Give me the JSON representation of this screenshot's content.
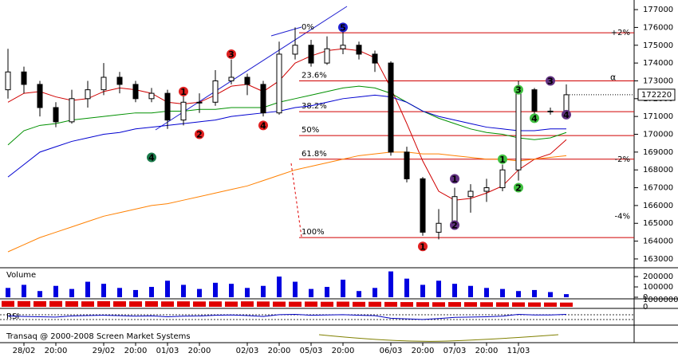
{
  "chart_data": {
    "type": "candlestick",
    "categories": [
      null,
      "28/02",
      null,
      "20:00",
      null,
      null,
      "29/02",
      null,
      "20:00",
      null,
      "01/03",
      null,
      "20:00",
      null,
      null,
      "02/03",
      null,
      "20:00",
      null,
      "05/03",
      null,
      "20:00",
      null,
      null,
      "06/03",
      null,
      "20:00",
      null,
      "07/03",
      null,
      "20:00",
      null,
      "11/03",
      null,
      null,
      null
    ],
    "open": [
      172500,
      173500,
      172800,
      171500,
      170700,
      172000,
      172500,
      173200,
      172800,
      172000,
      172300,
      170800,
      171800,
      171800,
      173000,
      173200,
      172800,
      171200,
      174500,
      175000,
      174000,
      174800,
      175000,
      174500,
      174000,
      169000,
      167500,
      164500,
      165000,
      166500,
      166800,
      167000,
      168000,
      172500,
      171300,
      171300
    ],
    "high": [
      174800,
      173800,
      173000,
      171800,
      172500,
      173000,
      174000,
      173500,
      173000,
      172600,
      172500,
      172200,
      172300,
      173600,
      174200,
      173400,
      173000,
      175200,
      176000,
      175300,
      175500,
      176000,
      175200,
      174700,
      174100,
      169300,
      167600,
      165800,
      167000,
      167200,
      167500,
      168300,
      173000,
      172600,
      171500,
      172800
    ],
    "low": [
      172000,
      172300,
      171000,
      170400,
      170600,
      171500,
      172200,
      172300,
      171800,
      171800,
      170300,
      170500,
      171200,
      171600,
      172800,
      172200,
      171000,
      171100,
      174200,
      173800,
      173900,
      174500,
      174200,
      173500,
      168800,
      167300,
      164300,
      164100,
      164800,
      165600,
      166200,
      166800,
      167400,
      171100,
      171100,
      171200
    ],
    "close": [
      173500,
      172800,
      171500,
      170700,
      172000,
      172500,
      173200,
      172800,
      172000,
      172300,
      170800,
      171800,
      171800,
      173000,
      173200,
      172800,
      171200,
      174500,
      175000,
      174000,
      174800,
      175000,
      174500,
      174000,
      169000,
      167500,
      164500,
      165000,
      166500,
      166800,
      167000,
      168000,
      172500,
      171300,
      171300,
      172220
    ],
    "series": [
      {
        "color": "#d00000",
        "values": [
          171800,
          172300,
          172400,
          172100,
          171900,
          172000,
          172400,
          172600,
          172500,
          172300,
          171800,
          171700,
          171800,
          172200,
          172700,
          172800,
          172400,
          173000,
          174000,
          174400,
          174700,
          174800,
          174700,
          174300,
          172600,
          170600,
          168500,
          166800,
          166300,
          166400,
          166700,
          167100,
          168000,
          168600,
          168900,
          169700
        ]
      },
      {
        "color": "#009000",
        "values": [
          169400,
          170200,
          170500,
          170600,
          170800,
          170900,
          171000,
          171100,
          171200,
          171200,
          171300,
          171300,
          171400,
          171400,
          171500,
          171500,
          171500,
          171800,
          172000,
          172200,
          172400,
          172600,
          172700,
          172600,
          172300,
          171800,
          171300,
          170900,
          170600,
          170300,
          170100,
          170000,
          169800,
          169700,
          169800,
          170100
        ]
      },
      {
        "color": "#0000d0",
        "values": [
          167600,
          168300,
          169000,
          169300,
          169600,
          169800,
          170000,
          170100,
          170300,
          170400,
          170500,
          170600,
          170700,
          170800,
          171000,
          171100,
          171200,
          171300,
          171500,
          171600,
          171800,
          172000,
          172100,
          172200,
          172100,
          171800,
          171300,
          171000,
          170800,
          170600,
          170400,
          170300,
          170200,
          170200,
          170300,
          170300
        ]
      },
      {
        "color": "#ff8000",
        "values": [
          163400,
          163800,
          164200,
          164500,
          164800,
          165100,
          165400,
          165600,
          165800,
          166000,
          166100,
          166300,
          166500,
          166700,
          166900,
          167100,
          167400,
          167700,
          168000,
          168200,
          168400,
          168600,
          168800,
          168900,
          169000,
          169000,
          168900,
          168900,
          168800,
          168700,
          168600,
          168600,
          168500,
          168600,
          168700,
          168800
        ]
      }
    ],
    "ylim": [
      162550,
      177540
    ],
    "yticks": [
      163000,
      164000,
      165000,
      166000,
      167000,
      168000,
      169000,
      170000,
      171000,
      172000,
      173000,
      174000,
      175000,
      176000,
      177000
    ],
    "last_price": 172220,
    "fib_levels": [
      {
        "label": "0%",
        "value": 175700
      },
      {
        "label": "23.6%",
        "value": 173000
      },
      {
        "label": "38.2%",
        "value": 171270
      },
      {
        "label": "50%",
        "value": 169930
      },
      {
        "label": "61.8%",
        "value": 168600
      },
      {
        "label": "100%",
        "value": 164200
      }
    ],
    "percent_labels": [
      {
        "label": "+2%",
        "value": 175700
      },
      {
        "label": "-2%",
        "value": 168600
      },
      {
        "label": "-4%",
        "value": 165400
      }
    ],
    "alpha": {
      "label": "α",
      "value": 173000
    },
    "markers": [
      {
        "label": "4",
        "color": "#1a7a4a",
        "candle": 9,
        "price": 168700
      },
      {
        "label": "1",
        "color": "#e02020",
        "candle": 11,
        "price": 172400
      },
      {
        "label": "2",
        "color": "#e02020",
        "candle": 12,
        "price": 170000
      },
      {
        "label": "3",
        "color": "#e02020",
        "candle": 14,
        "price": 174500
      },
      {
        "label": "4",
        "color": "#e02020",
        "candle": 16,
        "price": 170500
      },
      {
        "label": "5",
        "color": "#2020d0",
        "candle": 21,
        "price": 176000
      },
      {
        "label": "1",
        "color": "#e02020",
        "candle": 26,
        "price": 163700
      },
      {
        "label": "1",
        "color": "#603080",
        "candle": 28,
        "price": 167500
      },
      {
        "label": "2",
        "color": "#603080",
        "candle": 28,
        "price": 164900
      },
      {
        "label": "1",
        "color": "#40c040",
        "candle": 31,
        "price": 168600
      },
      {
        "label": "2",
        "color": "#40c040",
        "candle": 32,
        "price": 167000
      },
      {
        "label": "3",
        "color": "#40c040",
        "candle": 32,
        "price": 172500
      },
      {
        "label": "4",
        "color": "#40c040",
        "candle": 33,
        "price": 170900
      },
      {
        "label": "3",
        "color": "#603080",
        "candle": 34,
        "price": 173000
      },
      {
        "label": "4",
        "color": "#603080",
        "candle": 35,
        "price": 171100
      }
    ],
    "volume": {
      "title": "Volume",
      "color": "#0000e0",
      "values": [
        90000,
        120000,
        60000,
        110000,
        80000,
        150000,
        130000,
        90000,
        70000,
        100000,
        160000,
        120000,
        80000,
        140000,
        130000,
        90000,
        110000,
        200000,
        150000,
        80000,
        100000,
        170000,
        60000,
        90000,
        250000,
        180000,
        120000,
        160000,
        130000,
        110000,
        90000,
        80000,
        60000,
        70000,
        50000,
        30000
      ],
      "ylim": [
        0,
        270000
      ],
      "yticks": [
        0,
        100000,
        200000
      ]
    },
    "open_interest": {
      "color": "#e00000",
      "values": [
        820000,
        800000,
        790000,
        810000,
        780000,
        760000,
        790000,
        770000,
        760000,
        780000,
        750000,
        760000,
        740000,
        750000,
        730000,
        760000,
        740000,
        720000,
        710000,
        730000,
        700000,
        720000,
        690000,
        700000,
        680000,
        660000,
        650000,
        640000,
        660000,
        650000,
        640000,
        630000,
        620000,
        610000,
        600000,
        590000
      ],
      "ylim": [
        0,
        1000000
      ],
      "yticks": [
        0,
        1000000
      ]
    },
    "rsi": {
      "title": "RSI",
      "color": "#0000c0",
      "values": [
        55,
        52,
        50,
        48,
        55,
        58,
        60,
        57,
        54,
        56,
        50,
        54,
        55,
        60,
        62,
        58,
        52,
        64,
        66,
        60,
        62,
        64,
        60,
        57,
        40,
        36,
        32,
        38,
        46,
        48,
        50,
        54,
        66,
        62,
        62,
        66
      ],
      "ylim": [
        0,
        100
      ]
    },
    "footer": "Transaq @ 2000-2008 Screen Market Systems"
  }
}
